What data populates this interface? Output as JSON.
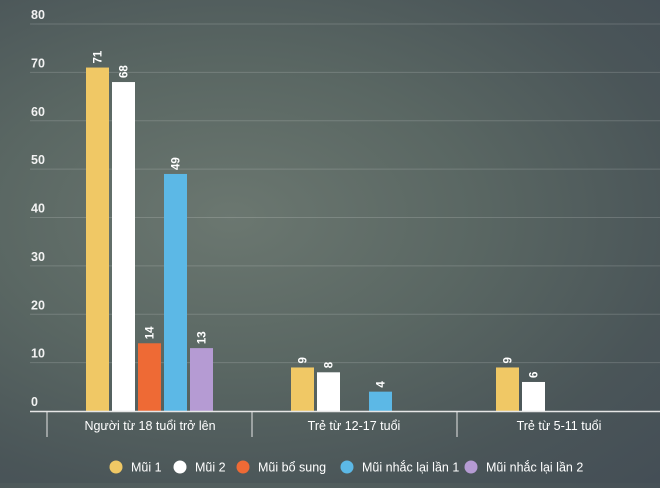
{
  "chart_data": {
    "type": "bar",
    "categories": [
      "Người từ 18 tuổi trở lên",
      "Trẻ từ 12-17 tuổi",
      "Trẻ từ 5-11 tuổi"
    ],
    "series": [
      {
        "name": "Mũi 1",
        "color": "#f0c865",
        "values": [
          71,
          9,
          9
        ]
      },
      {
        "name": "Mũi 2",
        "color": "#ffffff",
        "values": [
          68,
          8,
          6
        ]
      },
      {
        "name": "Mũi bổ sung",
        "color": "#ee6a35",
        "values": [
          14,
          null,
          null
        ]
      },
      {
        "name": "Mũi nhắc lại lần 1",
        "color": "#5cb8e6",
        "values": [
          49,
          4,
          null
        ]
      },
      {
        "name": "Mũi nhắc lại lần 2",
        "color": "#b59bd3",
        "values": [
          13,
          null,
          null
        ]
      }
    ],
    "ylim": [
      0,
      80
    ],
    "yticks": [
      0,
      10,
      20,
      30,
      40,
      50,
      60,
      70,
      80
    ],
    "grid": true,
    "legend": "bottom",
    "xlabel": "",
    "ylabel": ""
  }
}
